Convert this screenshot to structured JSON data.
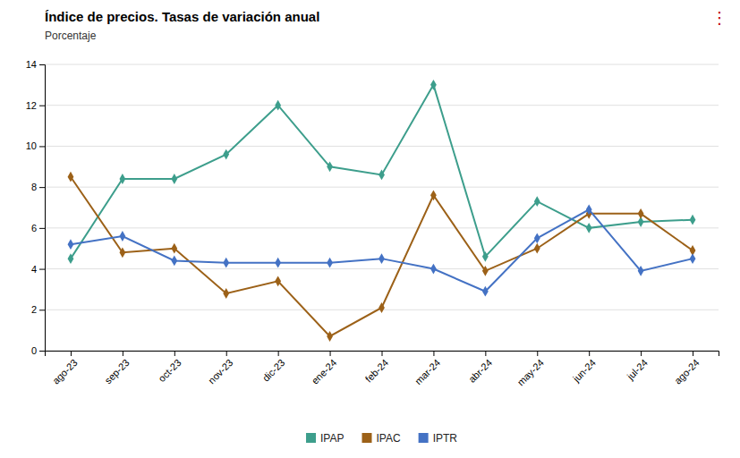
{
  "chart_data": {
    "type": "line",
    "title": "Índice de precios. Tasas de variación anual",
    "subtitle": "Porcentaje",
    "categories": [
      "ago-23",
      "sep-23",
      "oct-23",
      "nov-23",
      "dic-23",
      "ene-24",
      "feb-24",
      "mar-24",
      "abr-24",
      "may-24",
      "jun-24",
      "jul-24",
      "ago-24"
    ],
    "series": [
      {
        "name": "IPAP",
        "color": "#3d9e8c",
        "values": [
          4.5,
          8.4,
          8.4,
          9.6,
          12.0,
          9.0,
          8.6,
          13.0,
          4.6,
          7.3,
          6.0,
          6.3,
          6.4
        ]
      },
      {
        "name": "IPAC",
        "color": "#9c6118",
        "values": [
          8.5,
          4.8,
          5.0,
          2.8,
          3.4,
          0.7,
          2.1,
          7.6,
          3.9,
          5.0,
          6.7,
          6.7,
          4.9
        ]
      },
      {
        "name": "IPTR",
        "color": "#4472c4",
        "values": [
          5.2,
          5.6,
          4.4,
          4.3,
          4.3,
          4.3,
          4.5,
          4.0,
          2.9,
          5.5,
          6.9,
          3.9,
          4.5
        ]
      }
    ],
    "marker": "diamond",
    "ylim": [
      0,
      14
    ],
    "yticks": [
      0,
      2,
      4,
      6,
      8,
      10,
      12,
      14
    ],
    "grid": true,
    "legend": "bottom",
    "annotations": [
      {
        "text": "⋮",
        "color": "#c00000"
      }
    ]
  }
}
